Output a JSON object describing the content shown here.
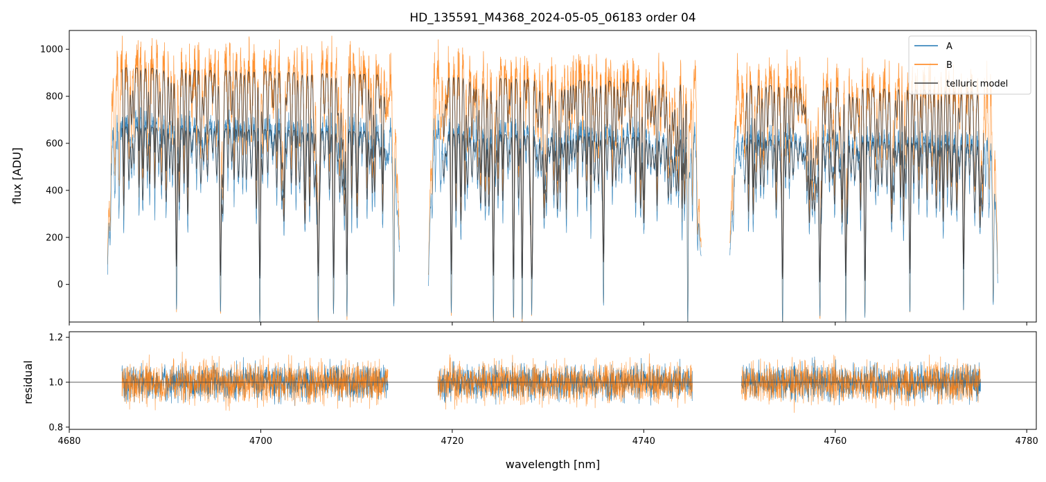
{
  "chart_data": [
    {
      "type": "line",
      "panel": "spectrum",
      "title": "HD_135591_M4368_2024-05-05_06183  order 04",
      "xlabel": "",
      "ylabel": "flux [ADU]",
      "xlim": [
        4680,
        4781
      ],
      "ylim": [
        -160,
        1080
      ],
      "yticks": [
        0,
        200,
        400,
        600,
        800,
        1000
      ],
      "yticklabels": [
        "0",
        "200",
        "400",
        "600",
        "800",
        "1000"
      ],
      "legend": {
        "placement": "top-right",
        "entries": [
          "A",
          "B",
          "telluric model"
        ]
      },
      "segments": [
        [
          4684.0,
          4714.5
        ],
        [
          4717.5,
          4746.0
        ],
        [
          4749.0,
          4777.0
        ]
      ],
      "series": [
        {
          "name": "A",
          "color": "#1f77b4",
          "continuum": 650,
          "noise": 0.07
        },
        {
          "name": "B",
          "color": "#ff7f0e",
          "continuum": 900,
          "noise": 0.09
        },
        {
          "name": "telluric model",
          "color": "#3a3a3a",
          "scales": [
            640,
            880
          ]
        }
      ],
      "deep_lines_nm": [
        4691.2,
        4695.8,
        4699.9,
        4706.0,
        4707.6,
        4709.0,
        4713.9,
        4719.9,
        4724.3,
        4726.4,
        4727.3,
        4728.3,
        4735.8,
        4744.6,
        4754.5,
        4758.4,
        4761.1,
        4763.1,
        4767.8,
        4773.4,
        4776.5
      ]
    },
    {
      "type": "line",
      "panel": "residual",
      "xlabel": "wavelength [nm]",
      "ylabel": "residual",
      "xlim": [
        4680,
        4781
      ],
      "ylim": [
        0.79,
        1.225
      ],
      "xticks": [
        4680,
        4700,
        4720,
        4740,
        4760,
        4780
      ],
      "xticklabels": [
        "4680",
        "4700",
        "4720",
        "4740",
        "4760",
        "4780"
      ],
      "yticks": [
        0.8,
        1.0,
        1.2
      ],
      "yticklabels": [
        "0.8",
        "1.0",
        "1.2"
      ],
      "reference_line": 1.0,
      "segments": [
        [
          4685.5,
          4713.3
        ],
        [
          4718.5,
          4745.1
        ],
        [
          4750.2,
          4775.2
        ]
      ],
      "series": [
        {
          "name": "A",
          "color": "#1f77b4",
          "sigma": 0.055
        },
        {
          "name": "B",
          "color": "#ff7f0e",
          "sigma": 0.065
        }
      ]
    }
  ]
}
